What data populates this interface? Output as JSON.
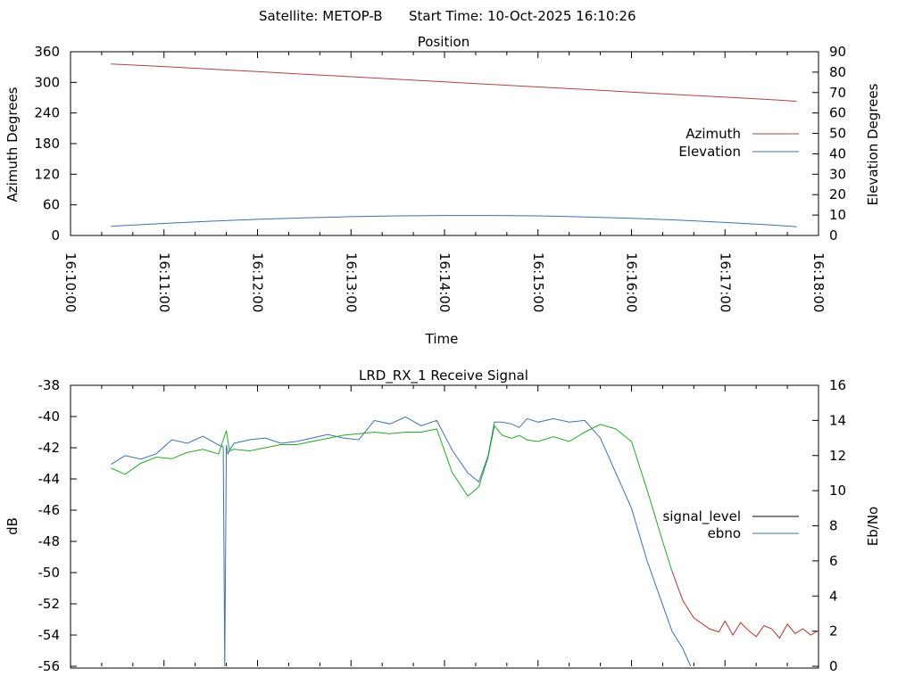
{
  "header": {
    "satellite": "Satellite: METOP-B",
    "start_time": "Start Time: 10-Oct-2025 16:10:26"
  },
  "chart_data": [
    {
      "type": "line",
      "title": "Position",
      "xlabel": "Time",
      "ylabel": "Azimuth Degrees",
      "y2label": "Elevation Degrees",
      "xlim": [
        "16:10:00",
        "16:18:00"
      ],
      "x_ticks": [
        "16:10:00",
        "16:11:00",
        "16:12:00",
        "16:13:00",
        "16:14:00",
        "16:15:00",
        "16:16:00",
        "16:17:00",
        "16:18:00"
      ],
      "ylim": [
        0,
        360
      ],
      "y_ticks": [
        "0",
        "60",
        "120",
        "180",
        "240",
        "300",
        "360"
      ],
      "y2lim": [
        0,
        90
      ],
      "y2_ticks": [
        "0",
        "10",
        "20",
        "30",
        "40",
        "50",
        "60",
        "70",
        "80",
        "90"
      ],
      "legend_position": "right",
      "series": [
        {
          "name": "Azimuth",
          "color": "#b04040",
          "axis": "y",
          "x": [
            "16:10:26",
            "16:11:00",
            "16:11:30",
            "16:12:00",
            "16:12:30",
            "16:13:00",
            "16:13:30",
            "16:14:00",
            "16:14:30",
            "16:15:00",
            "16:15:30",
            "16:16:00",
            "16:16:30",
            "16:17:00",
            "16:17:30",
            "16:17:46"
          ],
          "values": [
            336,
            331,
            326,
            321,
            316,
            311,
            306,
            301,
            296,
            291,
            286,
            281,
            276,
            271,
            266,
            263
          ]
        },
        {
          "name": "Elevation",
          "color": "#4070a8",
          "axis": "y2",
          "x": [
            "16:10:26",
            "16:11:00",
            "16:11:30",
            "16:12:00",
            "16:12:30",
            "16:13:00",
            "16:13:30",
            "16:14:00",
            "16:14:30",
            "16:15:00",
            "16:15:30",
            "16:16:00",
            "16:16:30",
            "16:17:00",
            "16:17:30",
            "16:17:46"
          ],
          "values": [
            4.5,
            5.9,
            7.0,
            7.9,
            8.6,
            9.2,
            9.6,
            9.8,
            9.8,
            9.6,
            9.1,
            8.4,
            7.5,
            6.4,
            5.1,
            4.3
          ]
        }
      ]
    },
    {
      "type": "line",
      "title": "LRD_RX_1 Receive Signal",
      "ylabel": "dB",
      "y2label": "Eb/No",
      "ylim": [
        -56,
        -38
      ],
      "y_ticks": [
        "-38",
        "-40",
        "-42",
        "-44",
        "-46",
        "-48",
        "-50",
        "-52",
        "-54",
        "-56"
      ],
      "y2lim": [
        0,
        16
      ],
      "y2_ticks": [
        "0",
        "2",
        "4",
        "6",
        "8",
        "10",
        "12",
        "14",
        "16"
      ],
      "xlim": [
        "16:10:00",
        "16:18:00"
      ],
      "legend_position": "right",
      "legend": [
        {
          "name": "signal_level",
          "color": "#000000"
        },
        {
          "name": "ebno",
          "color": "#4070a8"
        }
      ],
      "series": [
        {
          "name": "signal_level",
          "color": "#22aa22",
          "color_after_threshold": "#b03030",
          "axis": "y",
          "x_seconds": [
            26,
            35,
            45,
            55,
            65,
            75,
            85,
            95,
            100,
            102,
            105,
            115,
            125,
            135,
            145,
            155,
            165,
            175,
            185,
            195,
            205,
            215,
            225,
            235,
            245,
            255,
            262,
            268,
            272,
            277,
            283,
            288,
            293,
            300,
            310,
            320,
            330,
            340,
            350,
            360,
            370,
            380,
            386,
            393,
            400,
            410,
            416,
            420,
            425,
            430,
            435,
            440,
            445,
            450,
            455,
            460,
            465,
            470,
            475,
            480
          ],
          "values": [
            -43.3,
            -43.7,
            -43.0,
            -42.6,
            -42.7,
            -42.3,
            -42.1,
            -42.4,
            -40.9,
            -42.2,
            -42.1,
            -42.2,
            -42.0,
            -41.8,
            -41.8,
            -41.6,
            -41.4,
            -41.2,
            -41.1,
            -41.0,
            -41.1,
            -41.0,
            -41.0,
            -40.8,
            -43.6,
            -45.1,
            -44.5,
            -42.6,
            -40.6,
            -41.2,
            -41.4,
            -41.2,
            -41.5,
            -41.6,
            -41.3,
            -41.6,
            -41.0,
            -40.5,
            -40.8,
            -41.6,
            -44.7,
            -48.0,
            -49.9,
            -51.8,
            -52.9,
            -53.6,
            -53.8,
            -53.1,
            -54.0,
            -53.2,
            -53.7,
            -54.1,
            -53.4,
            -53.6,
            -54.2,
            -53.3,
            -53.9,
            -53.6,
            -54.0,
            -53.7
          ]
        },
        {
          "name": "ebno",
          "color": "#4070a8",
          "axis": "y2",
          "x_seconds": [
            26,
            35,
            45,
            55,
            65,
            75,
            85,
            95,
            98,
            99,
            100,
            101,
            102,
            105,
            115,
            125,
            135,
            145,
            155,
            165,
            175,
            185,
            195,
            205,
            215,
            225,
            235,
            245,
            255,
            262,
            268,
            272,
            277,
            283,
            288,
            293,
            300,
            310,
            320,
            330,
            340,
            350,
            360,
            370,
            380,
            386,
            393,
            398
          ],
          "values": [
            11.5,
            12.0,
            11.8,
            12.1,
            12.9,
            12.7,
            13.1,
            12.6,
            12.5,
            0.0,
            12.6,
            12.1,
            12.3,
            12.7,
            12.9,
            13.0,
            12.7,
            12.8,
            13.0,
            13.2,
            13.0,
            12.9,
            14.0,
            13.8,
            14.2,
            13.7,
            14.0,
            12.3,
            11.0,
            10.5,
            12.0,
            13.9,
            13.9,
            13.8,
            13.6,
            14.1,
            13.9,
            14.1,
            13.9,
            14.0,
            13.0,
            11.0,
            9.0,
            6.0,
            3.5,
            2.0,
            1.0,
            0.0
          ]
        }
      ]
    }
  ]
}
